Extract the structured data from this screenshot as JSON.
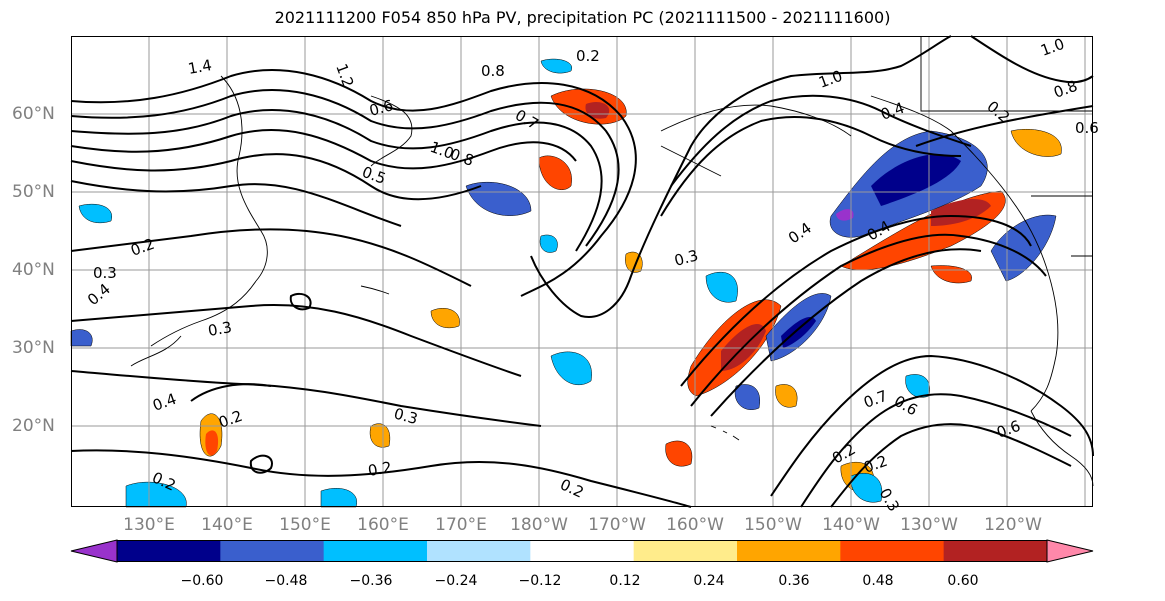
{
  "title": "2021111200 F054 850 hPa PV, precipitation PC (2021111500 - 2021111600)",
  "map": {
    "lat_labels": [
      "60°N",
      "50°N",
      "40°N",
      "30°N",
      "20°N"
    ],
    "lat_values": [
      60,
      50,
      40,
      30,
      20
    ],
    "lon_labels": [
      "130°E",
      "140°E",
      "150°E",
      "160°E",
      "170°E",
      "180°W",
      "170°W",
      "160°W",
      "150°W",
      "140°W",
      "130°W",
      "120°W"
    ],
    "lon_values": [
      130,
      140,
      150,
      160,
      170,
      180,
      190,
      200,
      210,
      220,
      230,
      240
    ],
    "extent": {
      "lon": [
        121,
        252
      ],
      "lat": [
        10,
        70
      ]
    },
    "grid": true,
    "contour_labels": [
      "1.4",
      "1.2",
      "0.8",
      "1.0",
      "0.6",
      "0.7",
      "1.0",
      "0.8",
      "0.5",
      "0.4",
      "0.2",
      "0.3",
      "0.2",
      "0.4",
      "0.3",
      "0.4",
      "0.2",
      "0.3",
      "0.3",
      "0.2",
      "0.2",
      "0.2",
      "0.4",
      "0.4",
      "0.7",
      "0.6",
      "0.6",
      "0.2",
      "0.2",
      "0.3",
      "1.0",
      "0.8",
      "0.2",
      "0.6"
    ]
  },
  "colorbar": {
    "tick_labels": [
      "−0.60",
      "−0.48",
      "−0.36",
      "−0.24",
      "−0.12",
      "0.12",
      "0.24",
      "0.36",
      "0.48",
      "0.60"
    ],
    "levels": [
      -0.6,
      -0.48,
      -0.36,
      -0.24,
      -0.12,
      0.12,
      0.24,
      0.36,
      0.48,
      0.6
    ],
    "colors": [
      "#9932cc",
      "#00008b",
      "#3a5fcd",
      "#00bfff",
      "#b0e2ff",
      "#ffffff",
      "#ffec8b",
      "#ffa500",
      "#ff4500",
      "#b22222",
      "#ff88aa"
    ]
  }
}
